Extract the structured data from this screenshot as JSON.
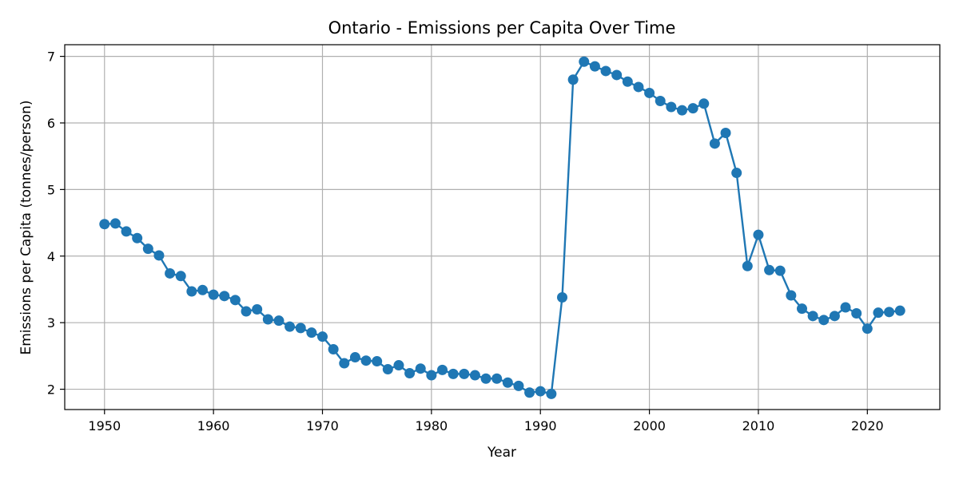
{
  "chart_data": {
    "type": "line",
    "title": "Ontario - Emissions per Capita Over Time",
    "xlabel": "Year",
    "ylabel": "Emissions per Capita (tonnes/person)",
    "xlim": [
      1946.35,
      2026.65
    ],
    "ylim": [
      1.695,
      7.175
    ],
    "xticks": [
      1950,
      1960,
      1970,
      1980,
      1990,
      2000,
      2010,
      2020
    ],
    "yticks": [
      2,
      3,
      4,
      5,
      6,
      7
    ],
    "grid": true,
    "line_color": "#1f77b4",
    "marker": "circle",
    "series": [
      {
        "x": [
          1950,
          1951,
          1952,
          1953,
          1954,
          1955,
          1956,
          1957,
          1958,
          1959,
          1960,
          1961,
          1962,
          1963,
          1964,
          1965,
          1966,
          1967,
          1968,
          1969,
          1970,
          1971,
          1972,
          1973,
          1974,
          1975,
          1976,
          1977,
          1978,
          1979,
          1980,
          1981,
          1982,
          1983,
          1984,
          1985,
          1986,
          1987,
          1988,
          1989,
          1990,
          1991,
          1992,
          1993,
          1994,
          1995,
          1996,
          1997,
          1998,
          1999,
          2000,
          2001,
          2002,
          2003,
          2004,
          2005,
          2006,
          2007,
          2008,
          2009,
          2010,
          2011,
          2012,
          2013,
          2014,
          2015,
          2016,
          2017,
          2018,
          2019,
          2020,
          2021,
          2022,
          2023
        ],
        "values": [
          4.48,
          4.49,
          4.37,
          4.27,
          4.11,
          4.01,
          3.74,
          3.7,
          3.47,
          3.49,
          3.42,
          3.4,
          3.34,
          3.17,
          3.2,
          3.05,
          3.03,
          2.94,
          2.92,
          2.85,
          2.79,
          2.6,
          2.39,
          2.48,
          2.43,
          2.42,
          2.3,
          2.36,
          2.24,
          2.31,
          2.21,
          2.29,
          2.23,
          2.23,
          2.21,
          2.16,
          2.16,
          2.1,
          2.05,
          1.95,
          1.97,
          1.93,
          3.38,
          6.65,
          6.92,
          6.85,
          6.78,
          6.72,
          6.62,
          6.54,
          6.45,
          6.33,
          6.24,
          6.19,
          6.22,
          6.29,
          5.69,
          5.85,
          5.25,
          3.85,
          4.32,
          3.79,
          3.78,
          3.41,
          3.21,
          3.1,
          3.04,
          3.1,
          3.23,
          3.14,
          2.91,
          3.15,
          3.16,
          3.18
        ]
      }
    ]
  }
}
